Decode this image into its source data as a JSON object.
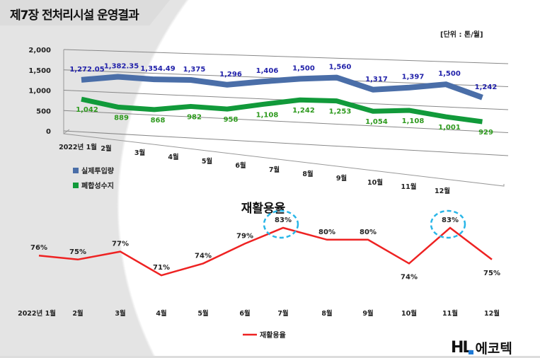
{
  "page": {
    "title": "제7장 전처리시설 운영결과",
    "unit": "[단위 : 톤/월]",
    "logo": "HL 에코텍"
  },
  "chart_data": [
    {
      "type": "line",
      "style": "3d",
      "categories": [
        "2022년 1월",
        "2월",
        "3월",
        "4월",
        "5월",
        "6월",
        "7월",
        "8월",
        "9월",
        "10월",
        "11월",
        "12월"
      ],
      "yticks": [
        "0",
        "500",
        "1,000",
        "1,500",
        "2,000"
      ],
      "ylim": [
        0,
        2000
      ],
      "grid": true,
      "legend": "bottom-left",
      "series": [
        {
          "name": "실제투입량",
          "color": "#4a6ea8",
          "label_color": "#2222aa",
          "values": [
            1272.05,
            1382.35,
            1354.49,
            1375,
            1296,
            1406,
            1500,
            1560,
            1317,
            1397,
            1500,
            1242
          ],
          "labels": [
            "1,272.05",
            "1,382.35",
            "1,354.49",
            "1,375",
            "1,296",
            "1,406",
            "1,500",
            "1,560",
            "1,317",
            "1,397",
            "1,500",
            "1,242"
          ]
        },
        {
          "name": "폐합성수지",
          "color": "#119a3a",
          "label_color": "#2e9a1e",
          "values": [
            1042,
            889,
            868,
            982,
            958,
            1108,
            1242,
            1253,
            1054,
            1108,
            1001,
            929
          ],
          "labels": [
            "1,042",
            "889",
            "868",
            "982",
            "958",
            "1,108",
            "1,242",
            "1,253",
            "1,054",
            "1,108",
            "1,001",
            "929"
          ]
        }
      ]
    },
    {
      "type": "line",
      "title": "재활용율",
      "categories": [
        "2022년 1월",
        "2월",
        "3월",
        "4월",
        "5월",
        "6월",
        "7월",
        "8월",
        "9월",
        "10월",
        "11월",
        "12월"
      ],
      "legend": "bottom",
      "series": [
        {
          "name": "재활용율",
          "color": "#ee2222",
          "values": [
            76,
            75,
            77,
            71,
            74,
            79,
            83,
            80,
            80,
            74,
            83,
            75
          ],
          "labels": [
            "76%",
            "75%",
            "77%",
            "71%",
            "74%",
            "79%",
            "83%",
            "80%",
            "80%",
            "74%",
            "83%",
            "75%"
          ]
        }
      ],
      "highlighted": [
        "7월",
        "11월"
      ],
      "highlight_color": "#29b6e8"
    }
  ]
}
